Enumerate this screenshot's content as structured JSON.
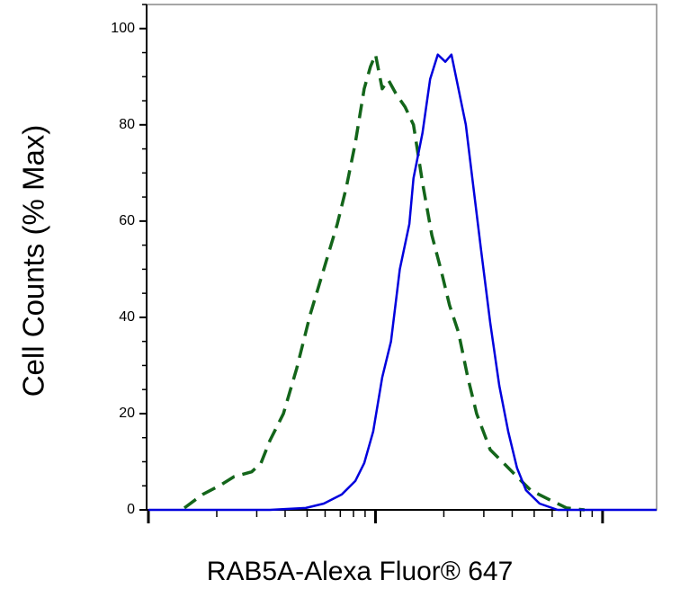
{
  "chart_data": {
    "type": "line",
    "x_label": "RAB5A-Alexa Fluor® 647",
    "y_label": "Cell Counts (% Max)",
    "xscale": "log",
    "xlim": [
      1,
      173
    ],
    "xticks": [
      1,
      10,
      100
    ],
    "xminorticks": [
      2,
      3,
      4,
      5,
      6,
      7,
      8,
      9,
      20,
      30,
      40,
      50,
      60,
      70,
      80,
      90
    ],
    "ylim": [
      0,
      105
    ],
    "yticks": [
      0,
      20,
      40,
      60,
      80,
      100
    ],
    "yminorticks": [
      5,
      10,
      15,
      25,
      30,
      35,
      45,
      50,
      55,
      65,
      70,
      75,
      85,
      90,
      95,
      105
    ],
    "series": [
      {
        "color": "#13651a",
        "dash": true,
        "x": [
          1.44,
          1.73,
          2.07,
          2.38,
          2.85,
          3.13,
          3.43,
          3.93,
          4.5,
          5.16,
          5.92,
          6.79,
          7.43,
          8.15,
          8.92,
          9.51,
          10.0,
          10.7,
          11.4,
          12.3,
          13.5,
          14.7,
          16.1,
          17.7,
          19.4,
          21.2,
          23.2,
          25.5,
          27.9,
          32.0,
          36.7,
          42.0,
          48.2,
          57.8,
          69.5,
          83.3
        ],
        "values": [
          0.4,
          3.2,
          5.1,
          6.9,
          7.9,
          9.7,
          14.4,
          20.0,
          29.4,
          40.6,
          50.0,
          59.4,
          66.9,
          76.2,
          87.5,
          92.1,
          94.6,
          87.5,
          89.3,
          86.5,
          83.7,
          80.0,
          68.0,
          57.1,
          50.0,
          42.5,
          36.9,
          27.5,
          20.0,
          12.5,
          9.7,
          6.9,
          4.1,
          2.2,
          0.4,
          0
        ]
      },
      {
        "color": "#0000dd",
        "dash": false,
        "x": [
          1,
          3.43,
          4.93,
          5.92,
          7.1,
          8.15,
          8.92,
          9.77,
          10.7,
          11.7,
          12.8,
          14.1,
          14.7,
          16.1,
          17.4,
          18.8,
          20.3,
          21.6,
          23.2,
          25.0,
          26.7,
          29.2,
          32.0,
          35.1,
          38.4,
          42.0,
          46.0,
          52.8,
          63.4,
          173
        ],
        "values": [
          0,
          0,
          0.4,
          1.3,
          3.2,
          6.0,
          9.7,
          16.3,
          27.5,
          35.0,
          50.0,
          59.4,
          68.9,
          78.3,
          89.5,
          94.6,
          93.1,
          94.6,
          87.5,
          80.0,
          68.9,
          53.9,
          38.9,
          25.8,
          16.3,
          8.7,
          4.1,
          1.3,
          0,
          0
        ]
      }
    ]
  }
}
